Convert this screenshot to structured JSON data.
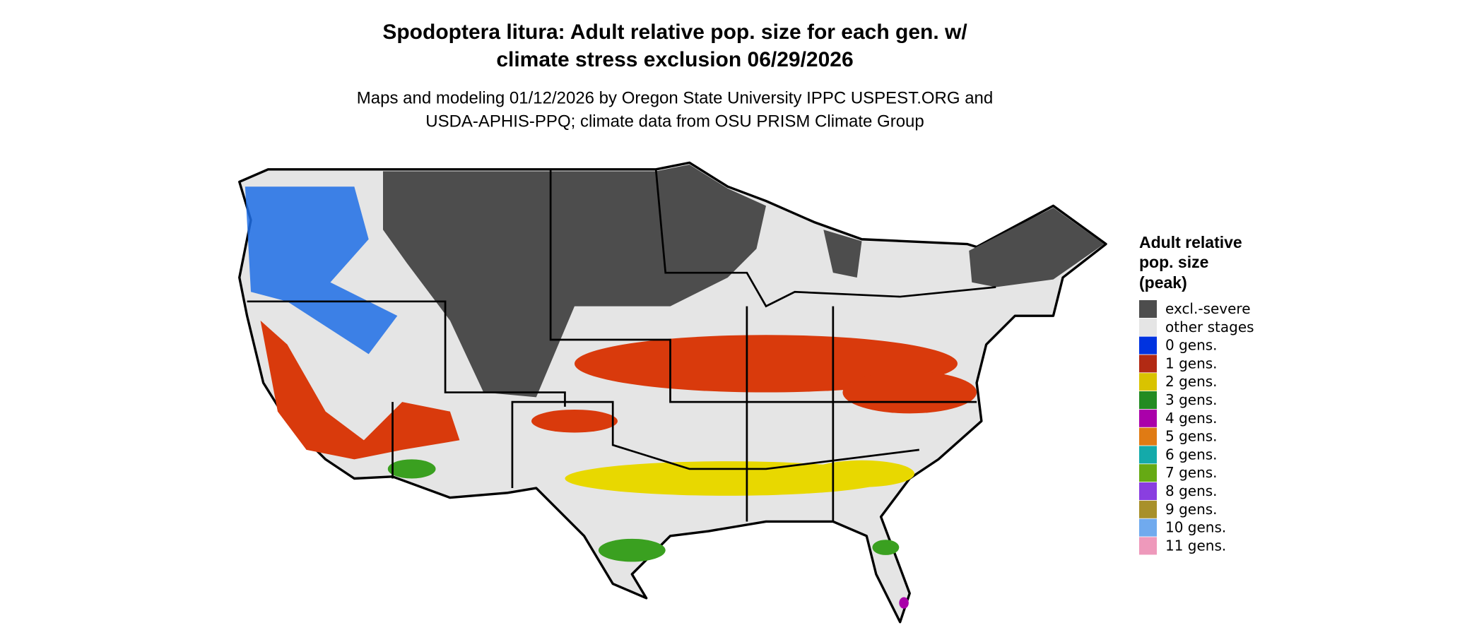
{
  "header": {
    "title_lines": [
      "Spodoptera litura: Adult relative pop. size for each gen. w/",
      "climate stress exclusion 06/29/2026"
    ],
    "subtitle_lines": [
      "Maps and modeling 01/12/2026 by Oregon State University IPPC USPEST.ORG and",
      "USDA-APHIS-PPQ; climate data from OSU PRISM Climate Group"
    ]
  },
  "legend": {
    "title_lines": [
      "Adult relative",
      "pop. size",
      "(peak)"
    ],
    "items": [
      {
        "label": "excl.-severe",
        "color": "#4d4d4d"
      },
      {
        "label": "other stages",
        "color": "#e5e5e5"
      },
      {
        "label": "0 gens.",
        "color": "#0033e0"
      },
      {
        "label": "1 gens.",
        "color": "#b22a14"
      },
      {
        "label": "2 gens.",
        "color": "#d9c300"
      },
      {
        "label": "3 gens.",
        "color": "#238b22"
      },
      {
        "label": "4 gens.",
        "color": "#aa00aa"
      },
      {
        "label": "5 gens.",
        "color": "#e07b14"
      },
      {
        "label": "6 gens.",
        "color": "#14aaaa"
      },
      {
        "label": "7 gens.",
        "color": "#66aa14"
      },
      {
        "label": "8 gens.",
        "color": "#8a3ee0"
      },
      {
        "label": "9 gens.",
        "color": "#a8902a"
      },
      {
        "label": "10 gens.",
        "color": "#70aaee"
      },
      {
        "label": "11 gens.",
        "color": "#ee99bb"
      }
    ]
  }
}
